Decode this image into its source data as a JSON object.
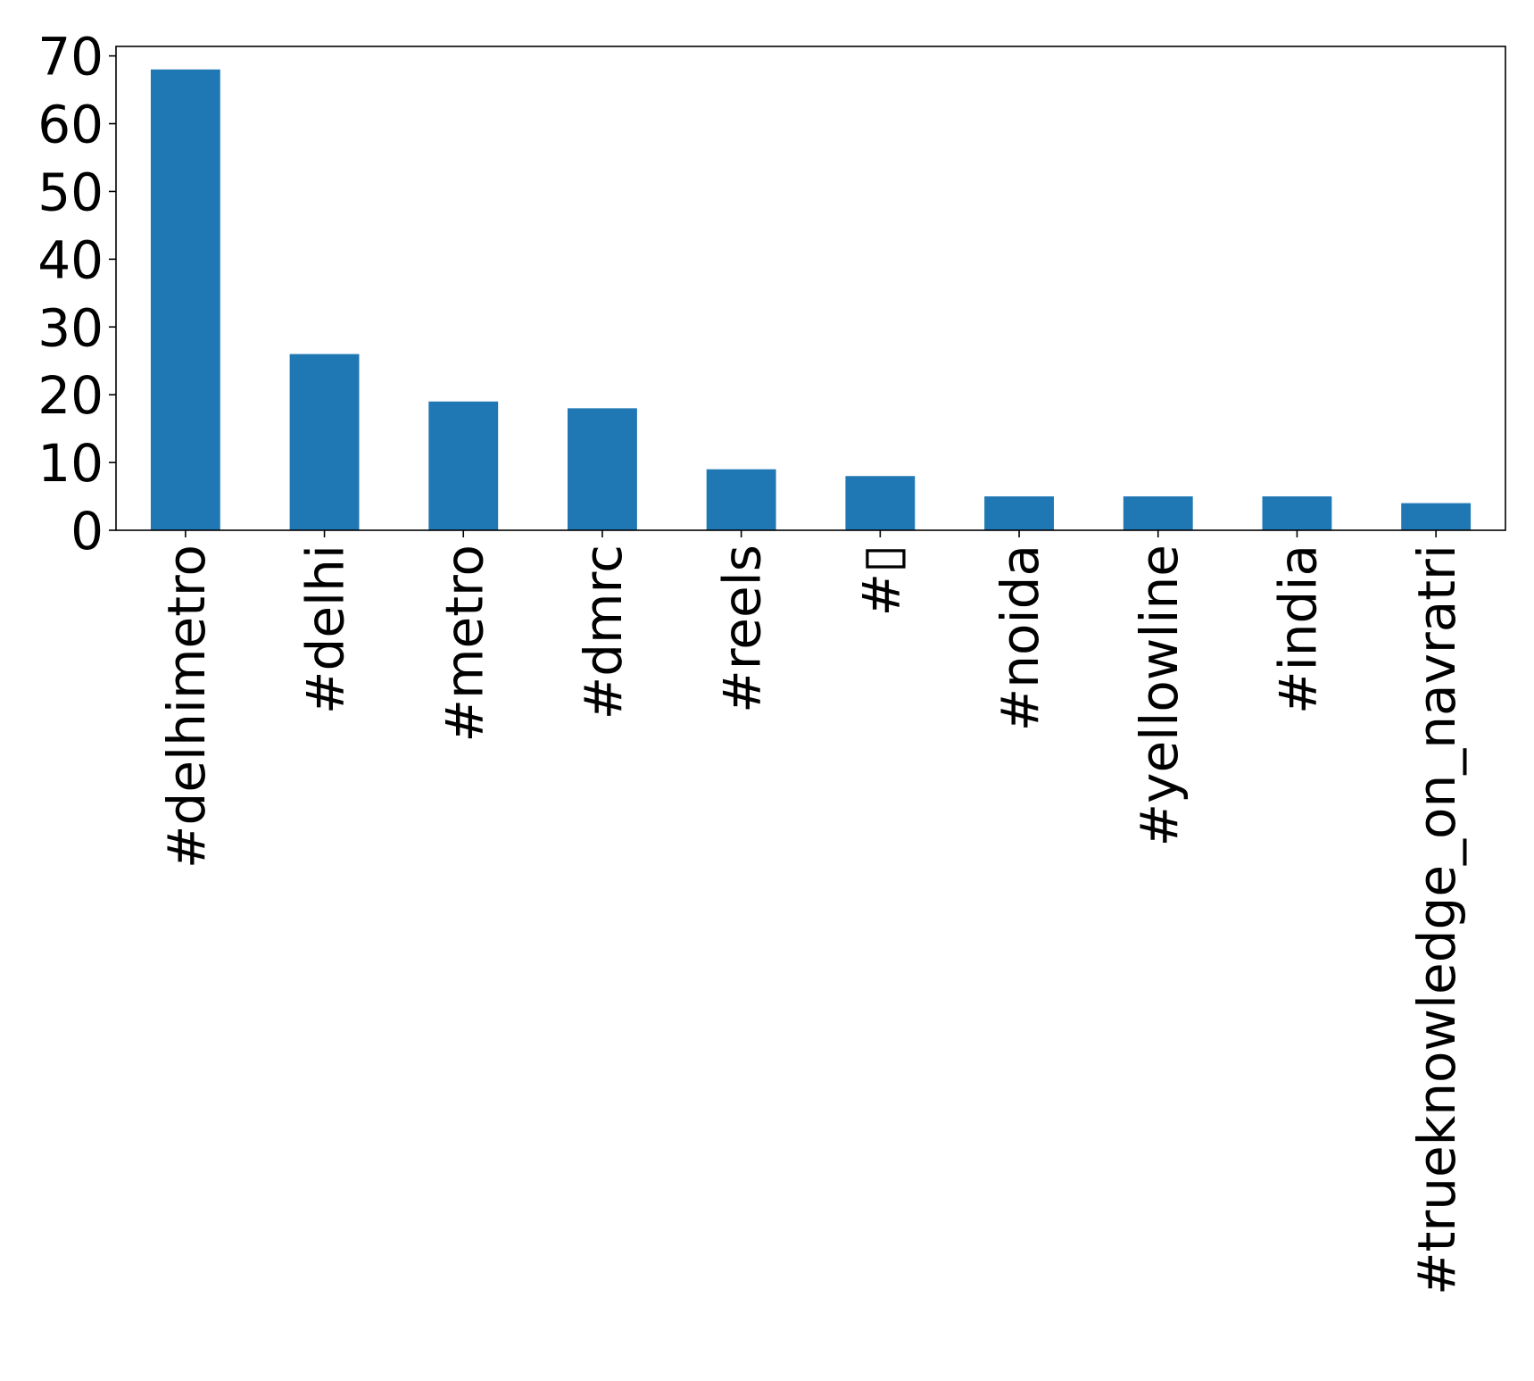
{
  "chart_data": {
    "type": "bar",
    "categories": [
      "#delhimetro",
      "#delhi",
      "#metro",
      "#dmrc",
      "#reels",
      "#▯",
      "#noida",
      "#yellowline",
      "#india",
      "#trueknowledge_on_navratri"
    ],
    "values": [
      68,
      26,
      19,
      18,
      9,
      8,
      5,
      5,
      5,
      4
    ],
    "ylim": [
      0,
      71.4
    ],
    "yticks": [
      "0",
      "10",
      "20",
      "30",
      "40",
      "50",
      "60",
      "70"
    ],
    "title": "",
    "xlabel": "",
    "ylabel": "",
    "grid": false,
    "legend": "none",
    "bar_color": "#1f77b4"
  }
}
